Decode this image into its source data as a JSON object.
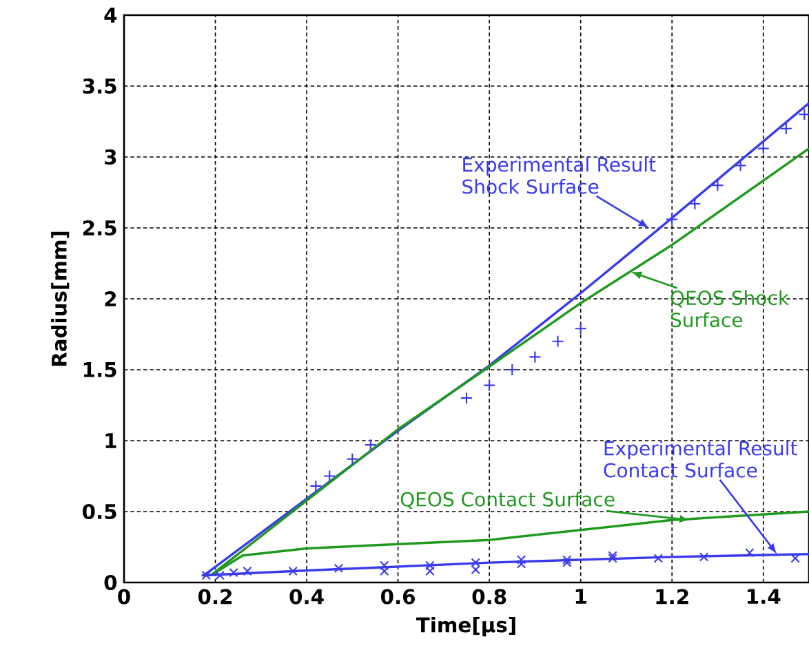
{
  "chart_data": {
    "type": "line",
    "xlabel": "Time[μs]",
    "ylabel": "Radius[mm]",
    "xlim": [
      0,
      1.5
    ],
    "xticks": [
      0,
      0.2,
      0.4,
      0.6,
      0.8,
      1,
      1.2,
      1.4
    ],
    "ylim": [
      0,
      4
    ],
    "yticks": [
      0,
      0.5,
      1,
      1.5,
      2,
      2.5,
      3,
      3.5,
      4
    ],
    "grid": true,
    "series": [
      {
        "color": "#3a3af0",
        "marker": "none",
        "x": [
          0.175,
          0.6,
          0.8,
          1.0,
          1.17,
          1.5
        ],
        "values": [
          0.05,
          1.07,
          1.53,
          2.04,
          2.49,
          3.38
        ]
      },
      {
        "color": "#1f9a1f",
        "marker": "none",
        "x": [
          0.19,
          0.6,
          0.79,
          1.0,
          1.2,
          1.5
        ],
        "values": [
          0.05,
          1.08,
          1.5,
          1.97,
          2.38,
          3.06
        ]
      },
      {
        "color": "#1f9a1f",
        "marker": "none",
        "x": [
          0.19,
          0.26,
          0.4,
          0.8,
          1.2,
          1.5
        ],
        "values": [
          0.05,
          0.19,
          0.24,
          0.3,
          0.44,
          0.5
        ]
      },
      {
        "color": "#3a3af0",
        "marker": "none",
        "x": [
          0.17,
          0.37,
          0.8,
          1.2,
          1.5
        ],
        "values": [
          0.05,
          0.08,
          0.14,
          0.18,
          0.2
        ]
      },
      {
        "type": "scatter",
        "color": "#3a3af0",
        "marker": "plus",
        "x": [
          0.42,
          0.45,
          0.5,
          0.54,
          0.75,
          0.8,
          0.85,
          0.9,
          0.95,
          1.0,
          1.2,
          1.25,
          1.3,
          1.35,
          1.4,
          1.45,
          1.49
        ],
        "values": [
          0.68,
          0.75,
          0.87,
          0.97,
          1.3,
          1.39,
          1.5,
          1.59,
          1.7,
          1.79,
          2.56,
          2.67,
          2.8,
          2.94,
          3.06,
          3.2,
          3.3
        ]
      },
      {
        "type": "scatter",
        "color": "#3a3af0",
        "marker": "cross",
        "x": [
          0.18,
          0.21,
          0.24,
          0.27,
          0.37,
          0.47,
          0.57,
          0.57,
          0.67,
          0.67,
          0.77,
          0.77,
          0.87,
          0.87,
          0.97,
          0.97,
          1.07,
          1.07,
          1.17,
          1.27,
          1.37,
          1.47
        ],
        "values": [
          0.05,
          0.05,
          0.07,
          0.08,
          0.08,
          0.1,
          0.12,
          0.08,
          0.12,
          0.08,
          0.14,
          0.09,
          0.16,
          0.13,
          0.16,
          0.14,
          0.19,
          0.17,
          0.17,
          0.18,
          0.21,
          0.17
        ]
      }
    ],
    "annotations": [
      {
        "text": "Experimental Result Shock Surface",
        "x": 1.15,
        "y": 2.5
      },
      {
        "text": "QEOS Shock Surface",
        "x": 1.11,
        "y": 2.19
      },
      {
        "text": "QEOS Contact Surface",
        "x": 1.24,
        "y": 0.44
      },
      {
        "text": "Experimental Result Contact Surface",
        "x": 1.43,
        "y": 0.2
      }
    ]
  }
}
